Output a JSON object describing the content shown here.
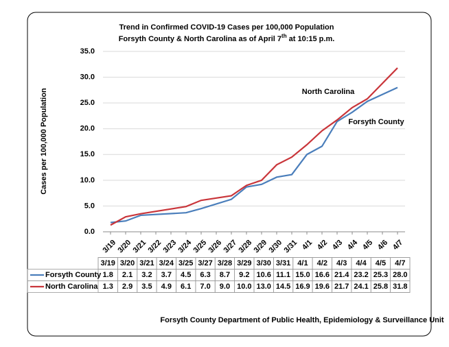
{
  "chart_data": {
    "type": "line",
    "title": "Trend in Confirmed  COVID-19 Cases per 100,000 Population",
    "subtitle": [
      "Forsyth County & North  Carolina  as of April 7",
      "th",
      " at 10:15 p.m."
    ],
    "y_label": "Cases per 100,000 Population",
    "categories": [
      "3/19",
      "3/20",
      "3/21",
      "3/22",
      "3/23",
      "3/24",
      "3/25",
      "3/26",
      "3/27",
      "3/28",
      "3/29",
      "3/30",
      "3/31",
      "4/1",
      "4/2",
      "4/3",
      "4/4",
      "4/5",
      "4/6",
      "4/7"
    ],
    "x": [
      "3/19",
      "3/20",
      "3/21",
      "3/24",
      "3/25",
      "3/27",
      "3/28",
      "3/29",
      "3/30",
      "3/31",
      "4/1",
      "4/2",
      "4/3",
      "4/4",
      "4/5",
      "4/7"
    ],
    "series": [
      {
        "name": "Forsyth County",
        "color": "#4a7ebb",
        "values": [
          1.8,
          2.1,
          3.2,
          3.7,
          4.5,
          6.3,
          8.7,
          9.2,
          10.6,
          11.1,
          15.0,
          16.6,
          21.4,
          23.2,
          25.3,
          28.0
        ],
        "value_labels": [
          "1.8",
          "2.1",
          "3.2",
          "3.7",
          "4.5",
          "6.3",
          "8.7",
          "9.2",
          "10.6",
          "11.1",
          "15.0",
          "16.6",
          "21.4",
          "23.2",
          "25.3",
          "28.0"
        ]
      },
      {
        "name": "North Carolina",
        "color": "#c9353a",
        "values": [
          1.3,
          2.9,
          3.5,
          4.9,
          6.1,
          7.0,
          9.0,
          10.0,
          13.0,
          14.5,
          16.9,
          19.6,
          21.7,
          24.1,
          25.8,
          31.8
        ],
        "value_labels": [
          "1.3",
          "2.9",
          "3.5",
          "4.9",
          "6.1",
          "7.0",
          "9.0",
          "10.0",
          "13.0",
          "14.5",
          "16.9",
          "19.6",
          "21.7",
          "24.1",
          "25.8",
          "31.8"
        ]
      }
    ],
    "ylim": [
      0,
      35
    ],
    "yticks": [
      {
        "value": 0,
        "label": "0.0"
      },
      {
        "value": 5,
        "label": "5.0"
      },
      {
        "value": 10,
        "label": "10.0"
      },
      {
        "value": 15,
        "label": "15.0"
      },
      {
        "value": 20,
        "label": "20.0"
      },
      {
        "value": 25,
        "label": "25.0"
      },
      {
        "value": 30,
        "label": "30.0"
      },
      {
        "value": 35,
        "label": "35.0"
      }
    ],
    "grid": true,
    "annotations": [
      "North Carolina",
      "Forsyth County"
    ],
    "footer": "Forsyth County Department of Public Health, Epidemiology & Surveillance  Unit"
  }
}
